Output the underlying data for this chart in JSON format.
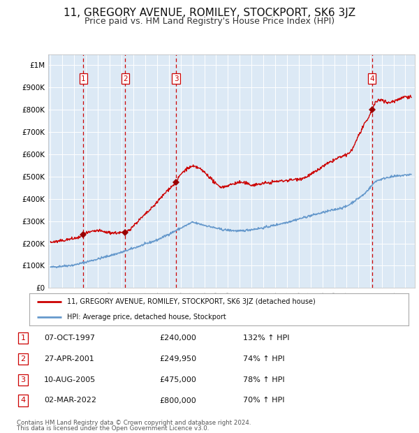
{
  "title": "11, GREGORY AVENUE, ROMILEY, STOCKPORT, SK6 3JZ",
  "subtitle": "Price paid vs. HM Land Registry's House Price Index (HPI)",
  "title_fontsize": 11,
  "subtitle_fontsize": 9,
  "plot_bg_color": "#dce9f5",
  "grid_color": "#ffffff",
  "hpi_line_color": "#6699cc",
  "price_line_color": "#cc0000",
  "marker_color": "#990000",
  "dashed_line_color": "#cc0000",
  "legend_label_red": "11, GREGORY AVENUE, ROMILEY, STOCKPORT, SK6 3JZ (detached house)",
  "legend_label_blue": "HPI: Average price, detached house, Stockport",
  "sales": [
    {
      "num": 1,
      "date": 1997.77,
      "price": 240000
    },
    {
      "num": 2,
      "date": 2001.32,
      "price": 249950
    },
    {
      "num": 3,
      "date": 2005.61,
      "price": 475000
    },
    {
      "num": 4,
      "date": 2022.17,
      "price": 800000
    }
  ],
  "ylim": [
    0,
    1050000
  ],
  "xlim_start": 1994.8,
  "xlim_end": 2025.8,
  "yticks": [
    0,
    100000,
    200000,
    300000,
    400000,
    500000,
    600000,
    700000,
    800000,
    900000,
    1000000
  ],
  "ytick_labels": [
    "£0",
    "£100K",
    "£200K",
    "£300K",
    "£400K",
    "£500K",
    "£600K",
    "£700K",
    "£800K",
    "£900K",
    "£1M"
  ],
  "footer_line1": "Contains HM Land Registry data © Crown copyright and database right 2024.",
  "footer_line2": "This data is licensed under the Open Government Licence v3.0.",
  "table_rows": [
    [
      "1",
      "07-OCT-1997",
      "£240,000",
      "132% ↑ HPI"
    ],
    [
      "2",
      "27-APR-2001",
      "£249,950",
      "74% ↑ HPI"
    ],
    [
      "3",
      "10-AUG-2005",
      "£475,000",
      "78% ↑ HPI"
    ],
    [
      "4",
      "02-MAR-2022",
      "£800,000",
      "70% ↑ HPI"
    ]
  ]
}
